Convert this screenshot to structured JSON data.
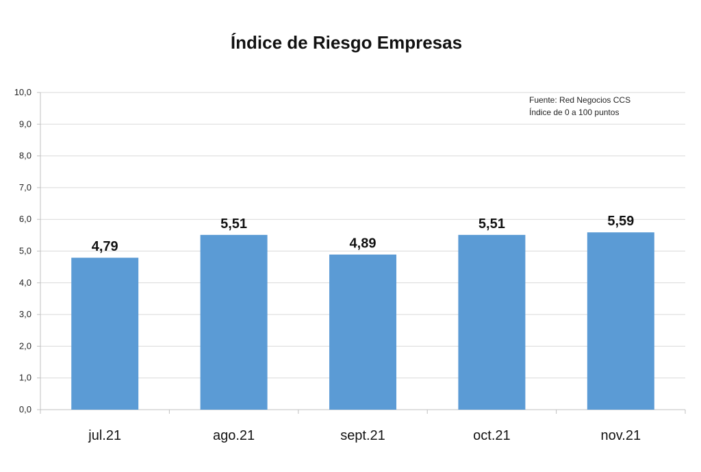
{
  "chart_data": {
    "type": "bar",
    "title": "Índice de Riesgo Empresas",
    "xlabel": "",
    "ylabel": "",
    "categories": [
      "jul.21",
      "ago.21",
      "sept.21",
      "oct.21",
      "nov.21"
    ],
    "values": [
      4.79,
      5.51,
      4.89,
      5.51,
      5.59
    ],
    "value_labels": [
      "4,79",
      "5,51",
      "4,89",
      "5,51",
      "5,59"
    ],
    "ylim": [
      0,
      10
    ],
    "y_ticks": [
      0,
      1,
      2,
      3,
      4,
      5,
      6,
      7,
      8,
      9,
      10
    ],
    "y_tick_labels": [
      "0,0",
      "1,0",
      "2,0",
      "3,0",
      "4,0",
      "5,0",
      "6,0",
      "7,0",
      "8,0",
      "9,0",
      "10,0"
    ],
    "grid": true,
    "legend": "none",
    "bar_color": "#5b9bd5",
    "annotations": [
      "Fuente: Red Negocios CCS",
      "Índice de 0 a 100 puntos"
    ]
  }
}
